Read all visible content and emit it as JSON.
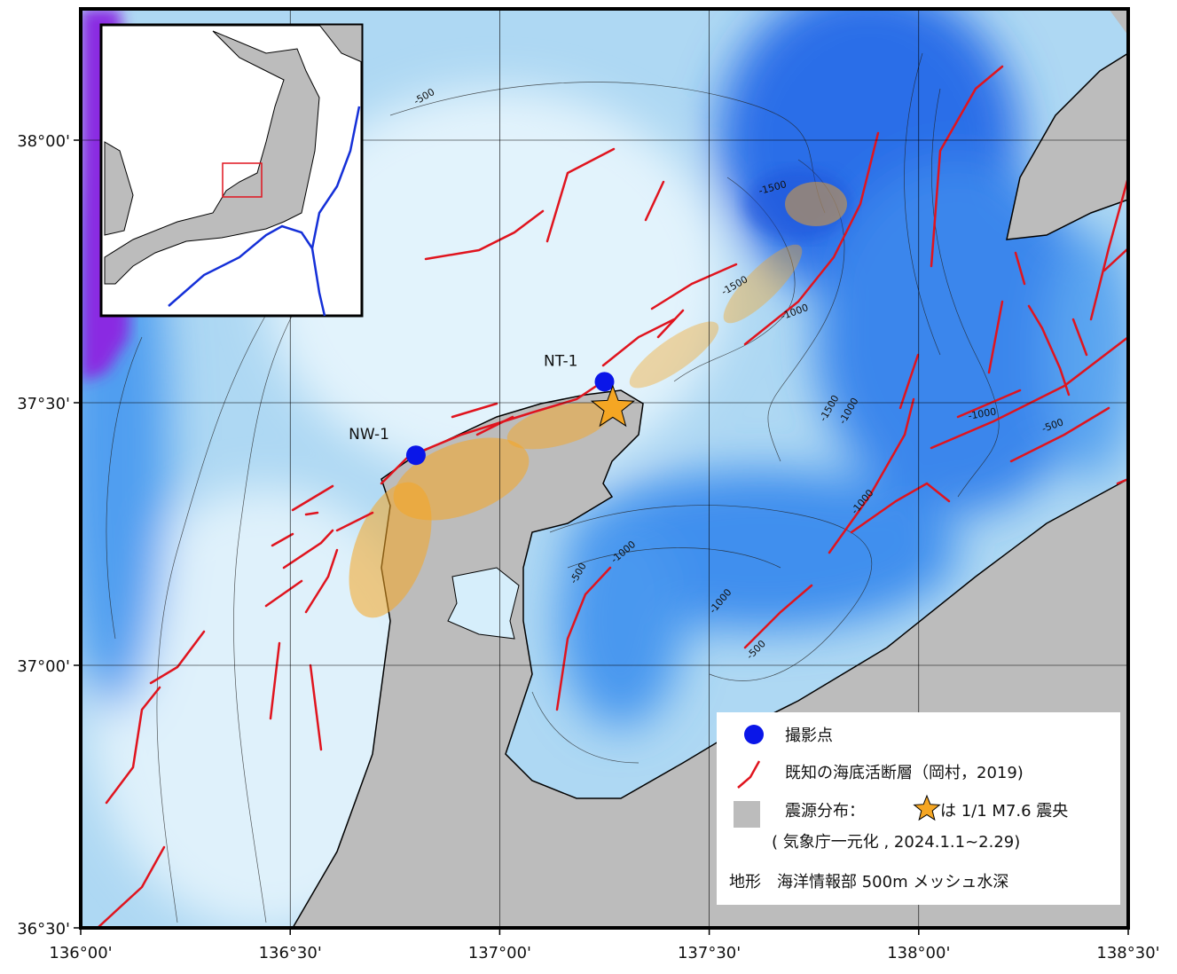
{
  "map": {
    "lon_range": [
      136,
      138.5
    ],
    "lat_range": [
      36.5,
      38.25
    ],
    "lon_ticks": [
      {
        "value": 136,
        "label": "136°00'"
      },
      {
        "value": 136.5,
        "label": "136°30'"
      },
      {
        "value": 137,
        "label": "137°00'"
      },
      {
        "value": 137.5,
        "label": "137°30'"
      },
      {
        "value": 138,
        "label": "138°00'"
      },
      {
        "value": 138.5,
        "label": "138°30'"
      }
    ],
    "lat_ticks": [
      {
        "value": 36.5,
        "label": "36°30'"
      },
      {
        "value": 37,
        "label": "37°00'"
      },
      {
        "value": 37.5,
        "label": "37°30'"
      },
      {
        "value": 38,
        "label": "38°00'"
      }
    ],
    "sites": [
      {
        "label": "NW-1",
        "lon": 136.8,
        "lat": 37.4
      },
      {
        "label": "NT-1",
        "lon": 137.25,
        "lat": 37.54
      }
    ],
    "epicenter": {
      "lon": 137.27,
      "lat": 37.49
    },
    "contour_labels": [
      "-500",
      "-1500",
      "-1500",
      "-1000",
      "-1500",
      "-1000",
      "-1000",
      "-500",
      "-1000",
      "-500",
      "-1000",
      "-1000",
      "-500"
    ],
    "legend": {
      "site": "撮影点",
      "fault": "既知の海底活断層（岡村，2019)",
      "seismicity": "震源分布：",
      "epicenter": "は 1/1 M7.6 震央",
      "source": "( 気象庁一元化 , 2024.1.1~2.29)",
      "topography": "地形　海洋情報部 500m メッシュ水深"
    }
  }
}
